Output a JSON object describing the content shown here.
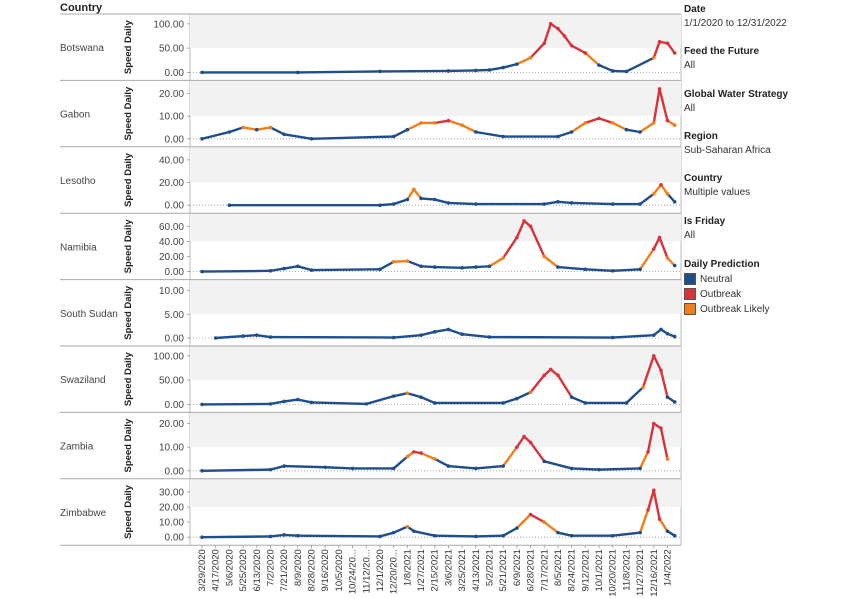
{
  "header": {
    "country_label": "Country"
  },
  "filters": [
    {
      "title": "Date",
      "value": "1/1/2020 to 12/31/2022"
    },
    {
      "title": "Feed the Future",
      "value": "All"
    },
    {
      "title": "Global Water Strategy",
      "value": "All"
    },
    {
      "title": "Region",
      "value": "Sub-Saharan Africa"
    },
    {
      "title": "Country",
      "value": "Multiple values"
    },
    {
      "title": "Is Friday",
      "value": "All"
    }
  ],
  "legend": {
    "title": "Daily Prediction",
    "items": [
      {
        "label": "Neutral",
        "color": "#1f4e8c"
      },
      {
        "label": "Outbreak",
        "color": "#d7333b"
      },
      {
        "label": "Outbreak Likely",
        "color": "#f07f1a"
      }
    ]
  },
  "chart_data": {
    "type": "line",
    "ylabel": "Speed Daily",
    "x_ticks": [
      "3/29/2020",
      "4/17/2020",
      "5/6/2020",
      "5/25/2020",
      "6/13/2020",
      "7/2/2020",
      "7/21/2020",
      "8/9/2020",
      "8/28/2020",
      "9/16/2020",
      "10/5/2020",
      "10/24/2020",
      "11/12/2020",
      "12/1/2020",
      "12/20/2020",
      "1/8/2021",
      "1/27/2021",
      "2/15/2021",
      "3/6/2021",
      "3/25/2021",
      "4/13/2021",
      "5/2/2021",
      "5/21/2021",
      "6/9/2021",
      "6/28/2021",
      "7/17/2021",
      "8/5/2021",
      "8/24/2021",
      "9/12/2021",
      "10/1/2021",
      "10/20/2021",
      "11/8/2021",
      "11/27/2021",
      "12/16/2021",
      "1/4/2022"
    ],
    "x_tick_labels": [
      "3/29/2020",
      "4/17/2020",
      "5/6/2020",
      "5/25/2020",
      "6/13/2020",
      "7/2/2020",
      "7/21/2020",
      "8/9/2020",
      "8/28/2020",
      "9/16/2020",
      "10/5/2020",
      "10/24/20...",
      "11/12/20...",
      "12/1/2020",
      "12/20/20...",
      "1/8/2021",
      "1/27/2021",
      "2/15/2021",
      "3/6/2021",
      "3/25/2021",
      "4/13/2021",
      "5/2/2021",
      "5/21/2021",
      "6/9/2021",
      "6/28/2021",
      "7/17/2021",
      "8/5/2021",
      "8/24/2021",
      "9/12/2021",
      "10/1/2021",
      "10/20/2021",
      "11/8/2021",
      "11/27/2021",
      "12/16/2021",
      "1/4/2022"
    ],
    "panels": [
      {
        "country": "Botswana",
        "yticks": [
          0,
          50,
          100
        ],
        "ytick_labels": [
          "0.00",
          "50.00",
          "100.00"
        ],
        "ymax": 112,
        "points": [
          [
            "3/29/2020",
            0
          ],
          [
            "8/9/2020",
            0
          ],
          [
            "12/1/2020",
            2
          ],
          [
            "3/6/2021",
            3
          ],
          [
            "4/13/2021",
            4
          ],
          [
            "5/2/2021",
            5
          ],
          [
            "5/21/2021",
            10
          ],
          [
            "6/9/2021",
            17
          ],
          [
            "6/28/2021",
            30
          ],
          [
            "7/17/2021",
            60
          ],
          [
            "7/26/2021",
            100
          ],
          [
            "8/5/2021",
            90
          ],
          [
            "8/14/2021",
            75
          ],
          [
            "8/24/2021",
            55
          ],
          [
            "9/12/2021",
            40
          ],
          [
            "10/1/2021",
            15
          ],
          [
            "10/20/2021",
            3
          ],
          [
            "11/8/2021",
            2
          ],
          [
            "12/16/2021",
            30
          ],
          [
            "12/24/2021",
            63
          ],
          [
            "1/4/2022",
            60
          ],
          [
            "1/14/2022",
            40
          ]
        ]
      },
      {
        "country": "Gabon",
        "yticks": [
          0,
          10,
          20
        ],
        "ytick_labels": [
          "0.00",
          "10.00",
          "20.00"
        ],
        "ymax": 24,
        "points": [
          [
            "3/29/2020",
            0
          ],
          [
            "5/6/2020",
            3
          ],
          [
            "5/25/2020",
            5
          ],
          [
            "6/13/2020",
            4
          ],
          [
            "7/2/2020",
            5
          ],
          [
            "7/21/2020",
            2
          ],
          [
            "8/28/2020",
            0
          ],
          [
            "12/20/2020",
            1
          ],
          [
            "1/8/2021",
            4
          ],
          [
            "1/27/2021",
            7
          ],
          [
            "2/15/2021",
            7
          ],
          [
            "3/6/2021",
            8
          ],
          [
            "3/25/2021",
            6
          ],
          [
            "4/13/2021",
            3
          ],
          [
            "5/21/2021",
            1
          ],
          [
            "8/5/2021",
            1
          ],
          [
            "8/24/2021",
            3
          ],
          [
            "9/12/2021",
            7
          ],
          [
            "10/1/2021",
            9
          ],
          [
            "10/20/2021",
            7
          ],
          [
            "11/8/2021",
            4
          ],
          [
            "11/27/2021",
            3
          ],
          [
            "12/16/2021",
            7
          ],
          [
            "12/24/2021",
            22
          ],
          [
            "1/4/2022",
            8
          ],
          [
            "1/14/2022",
            6
          ]
        ]
      },
      {
        "country": "Lesotho",
        "yticks": [
          0,
          20,
          40
        ],
        "ytick_labels": [
          "0.00",
          "20.00",
          "40.00"
        ],
        "ymax": 48,
        "points": [
          [
            "5/6/2020",
            0
          ],
          [
            "12/1/2020",
            0
          ],
          [
            "12/20/2020",
            1
          ],
          [
            "1/8/2021",
            5
          ],
          [
            "1/17/2021",
            14
          ],
          [
            "1/27/2021",
            6
          ],
          [
            "2/15/2021",
            5
          ],
          [
            "3/6/2021",
            2
          ],
          [
            "4/13/2021",
            1
          ],
          [
            "7/17/2021",
            1
          ],
          [
            "8/5/2021",
            3
          ],
          [
            "8/24/2021",
            2
          ],
          [
            "10/20/2021",
            1
          ],
          [
            "11/27/2021",
            1
          ],
          [
            "12/16/2021",
            10
          ],
          [
            "12/26/2021",
            18
          ],
          [
            "1/4/2022",
            10
          ],
          [
            "1/14/2022",
            3
          ]
        ]
      },
      {
        "country": "Namibia",
        "yticks": [
          0,
          20,
          40,
          60
        ],
        "ytick_labels": [
          "0.00",
          "20.00",
          "40.00",
          "60.00"
        ],
        "ymax": 72,
        "points": [
          [
            "3/29/2020",
            0
          ],
          [
            "7/2/2020",
            1
          ],
          [
            "7/21/2020",
            4
          ],
          [
            "8/9/2020",
            7
          ],
          [
            "8/28/2020",
            2
          ],
          [
            "12/1/2020",
            3
          ],
          [
            "12/20/2020",
            13
          ],
          [
            "1/8/2021",
            14
          ],
          [
            "1/27/2021",
            7
          ],
          [
            "2/15/2021",
            6
          ],
          [
            "3/25/2021",
            5
          ],
          [
            "4/13/2021",
            6
          ],
          [
            "5/2/2021",
            7
          ],
          [
            "5/21/2021",
            18
          ],
          [
            "6/9/2021",
            45
          ],
          [
            "6/19/2021",
            67
          ],
          [
            "6/28/2021",
            60
          ],
          [
            "7/17/2021",
            20
          ],
          [
            "8/5/2021",
            6
          ],
          [
            "9/12/2021",
            3
          ],
          [
            "10/20/2021",
            1
          ],
          [
            "11/27/2021",
            3
          ],
          [
            "12/16/2021",
            30
          ],
          [
            "12/24/2021",
            45
          ],
          [
            "1/4/2022",
            18
          ],
          [
            "1/14/2022",
            8
          ]
        ]
      },
      {
        "country": "South Sudan",
        "yticks": [
          0,
          5,
          10
        ],
        "ytick_labels": [
          "0.00",
          "5.00",
          "10.00"
        ],
        "ymax": 11.5,
        "points": [
          [
            "4/17/2020",
            0
          ],
          [
            "5/25/2020",
            0.4
          ],
          [
            "6/13/2020",
            0.6
          ],
          [
            "7/2/2020",
            0.2
          ],
          [
            "12/20/2020",
            0.1
          ],
          [
            "1/27/2021",
            0.6
          ],
          [
            "2/15/2021",
            1.3
          ],
          [
            "3/6/2021",
            1.8
          ],
          [
            "3/25/2021",
            0.8
          ],
          [
            "5/2/2021",
            0.2
          ],
          [
            "10/20/2021",
            0.1
          ],
          [
            "12/16/2021",
            0.6
          ],
          [
            "12/26/2021",
            1.8
          ],
          [
            "1/4/2022",
            0.9
          ],
          [
            "1/14/2022",
            0.3
          ]
        ]
      },
      {
        "country": "Swaziland",
        "yticks": [
          0,
          50,
          100
        ],
        "ytick_labels": [
          "0.00",
          "50.00",
          "100.00"
        ],
        "ymax": 112,
        "points": [
          [
            "3/29/2020",
            0
          ],
          [
            "7/2/2020",
            1
          ],
          [
            "7/21/2020",
            6
          ],
          [
            "8/9/2020",
            10
          ],
          [
            "8/28/2020",
            4
          ],
          [
            "11/12/2020",
            1
          ],
          [
            "12/20/2020",
            17
          ],
          [
            "1/8/2021",
            23
          ],
          [
            "1/27/2021",
            15
          ],
          [
            "2/15/2021",
            3
          ],
          [
            "5/21/2021",
            3
          ],
          [
            "6/9/2021",
            12
          ],
          [
            "6/28/2021",
            25
          ],
          [
            "7/17/2021",
            60
          ],
          [
            "7/26/2021",
            72
          ],
          [
            "8/5/2021",
            60
          ],
          [
            "8/24/2021",
            15
          ],
          [
            "9/12/2021",
            3
          ],
          [
            "11/8/2021",
            3
          ],
          [
            "12/1/2021",
            35
          ],
          [
            "12/16/2021",
            100
          ],
          [
            "12/26/2021",
            70
          ],
          [
            "1/4/2022",
            15
          ],
          [
            "1/14/2022",
            5
          ]
        ]
      },
      {
        "country": "Zambia",
        "yticks": [
          0,
          10,
          20
        ],
        "ytick_labels": [
          "0.00",
          "10.00",
          "20.00"
        ],
        "ymax": 23,
        "points": [
          [
            "3/29/2020",
            0
          ],
          [
            "7/2/2020",
            0.5
          ],
          [
            "7/21/2020",
            2
          ],
          [
            "9/16/2020",
            1.5
          ],
          [
            "10/24/2020",
            1
          ],
          [
            "12/20/2020",
            1
          ],
          [
            "1/8/2021",
            6
          ],
          [
            "1/17/2021",
            8
          ],
          [
            "1/27/2021",
            7.5
          ],
          [
            "2/15/2021",
            5
          ],
          [
            "3/6/2021",
            2
          ],
          [
            "4/13/2021",
            1
          ],
          [
            "5/21/2021",
            2
          ],
          [
            "6/9/2021",
            10
          ],
          [
            "6/19/2021",
            14.5
          ],
          [
            "6/28/2021",
            12
          ],
          [
            "7/17/2021",
            4
          ],
          [
            "8/24/2021",
            1
          ],
          [
            "10/1/2021",
            0.5
          ],
          [
            "11/27/2021",
            1
          ],
          [
            "12/8/2021",
            8
          ],
          [
            "12/16/2021",
            20
          ],
          [
            "12/26/2021",
            18
          ],
          [
            "1/4/2022",
            5
          ]
        ]
      },
      {
        "country": "Zimbabwe",
        "yticks": [
          0,
          10,
          20,
          30
        ],
        "ytick_labels": [
          "0.00",
          "10.00",
          "20.00",
          "30.00"
        ],
        "ymax": 36,
        "points": [
          [
            "3/29/2020",
            0
          ],
          [
            "7/2/2020",
            0.5
          ],
          [
            "7/21/2020",
            1.5
          ],
          [
            "8/9/2020",
            1
          ],
          [
            "12/1/2020",
            0.5
          ],
          [
            "12/20/2020",
            3
          ],
          [
            "1/8/2021",
            7
          ],
          [
            "1/17/2021",
            4
          ],
          [
            "2/15/2021",
            1
          ],
          [
            "4/13/2021",
            0.5
          ],
          [
            "5/21/2021",
            1
          ],
          [
            "6/9/2021",
            6
          ],
          [
            "6/28/2021",
            15
          ],
          [
            "7/17/2021",
            10
          ],
          [
            "8/5/2021",
            3
          ],
          [
            "8/24/2021",
            1
          ],
          [
            "10/20/2021",
            1
          ],
          [
            "11/27/2021",
            3
          ],
          [
            "12/8/2021",
            18
          ],
          [
            "12/16/2021",
            31
          ],
          [
            "12/24/2021",
            12
          ],
          [
            "1/4/2022",
            4
          ],
          [
            "1/14/2022",
            1
          ]
        ]
      }
    ]
  }
}
